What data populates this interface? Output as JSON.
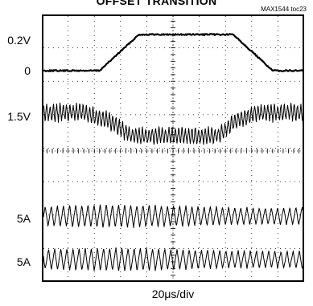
{
  "chart_data": {
    "type": "line",
    "title": "OFFSET TRANSITION",
    "figure_id": "MAX1544 toc23",
    "xlabel": "20μs/div",
    "grid": true,
    "grid_divisions": {
      "x": 10,
      "y": 8
    },
    "channel_labels": [
      "0.2V",
      "0",
      "1.5V",
      "5A",
      "5A"
    ],
    "time_per_div_us": 20,
    "series": [
      {
        "label": "0.2V",
        "level_label": "0",
        "waveform": "offset step",
        "points_time_div_vs_level_v": [
          [
            0,
            0
          ],
          [
            2.2,
            0
          ],
          [
            3.7,
            0.2
          ],
          [
            7.3,
            0.2
          ],
          [
            8.8,
            0
          ],
          [
            10,
            0
          ]
        ]
      },
      {
        "label": "1.5V",
        "waveform": "output voltage with switching ripple, dips during the offset",
        "ripple_divs": 0.5,
        "points_time_div_vs_level_divs": [
          [
            0,
            0
          ],
          [
            1.6,
            0
          ],
          [
            2.7,
            -0.3
          ],
          [
            3.4,
            -0.7
          ],
          [
            6.7,
            -0.7
          ],
          [
            7.3,
            -0.3
          ],
          [
            8.2,
            0
          ],
          [
            10,
            0
          ]
        ]
      },
      {
        "label": "5A",
        "waveform": "inductor current triangle ripple",
        "ripple_divs": 0.6
      },
      {
        "label": "5A",
        "waveform": "inductor current triangle ripple",
        "ripple_divs": 0.6
      }
    ]
  }
}
